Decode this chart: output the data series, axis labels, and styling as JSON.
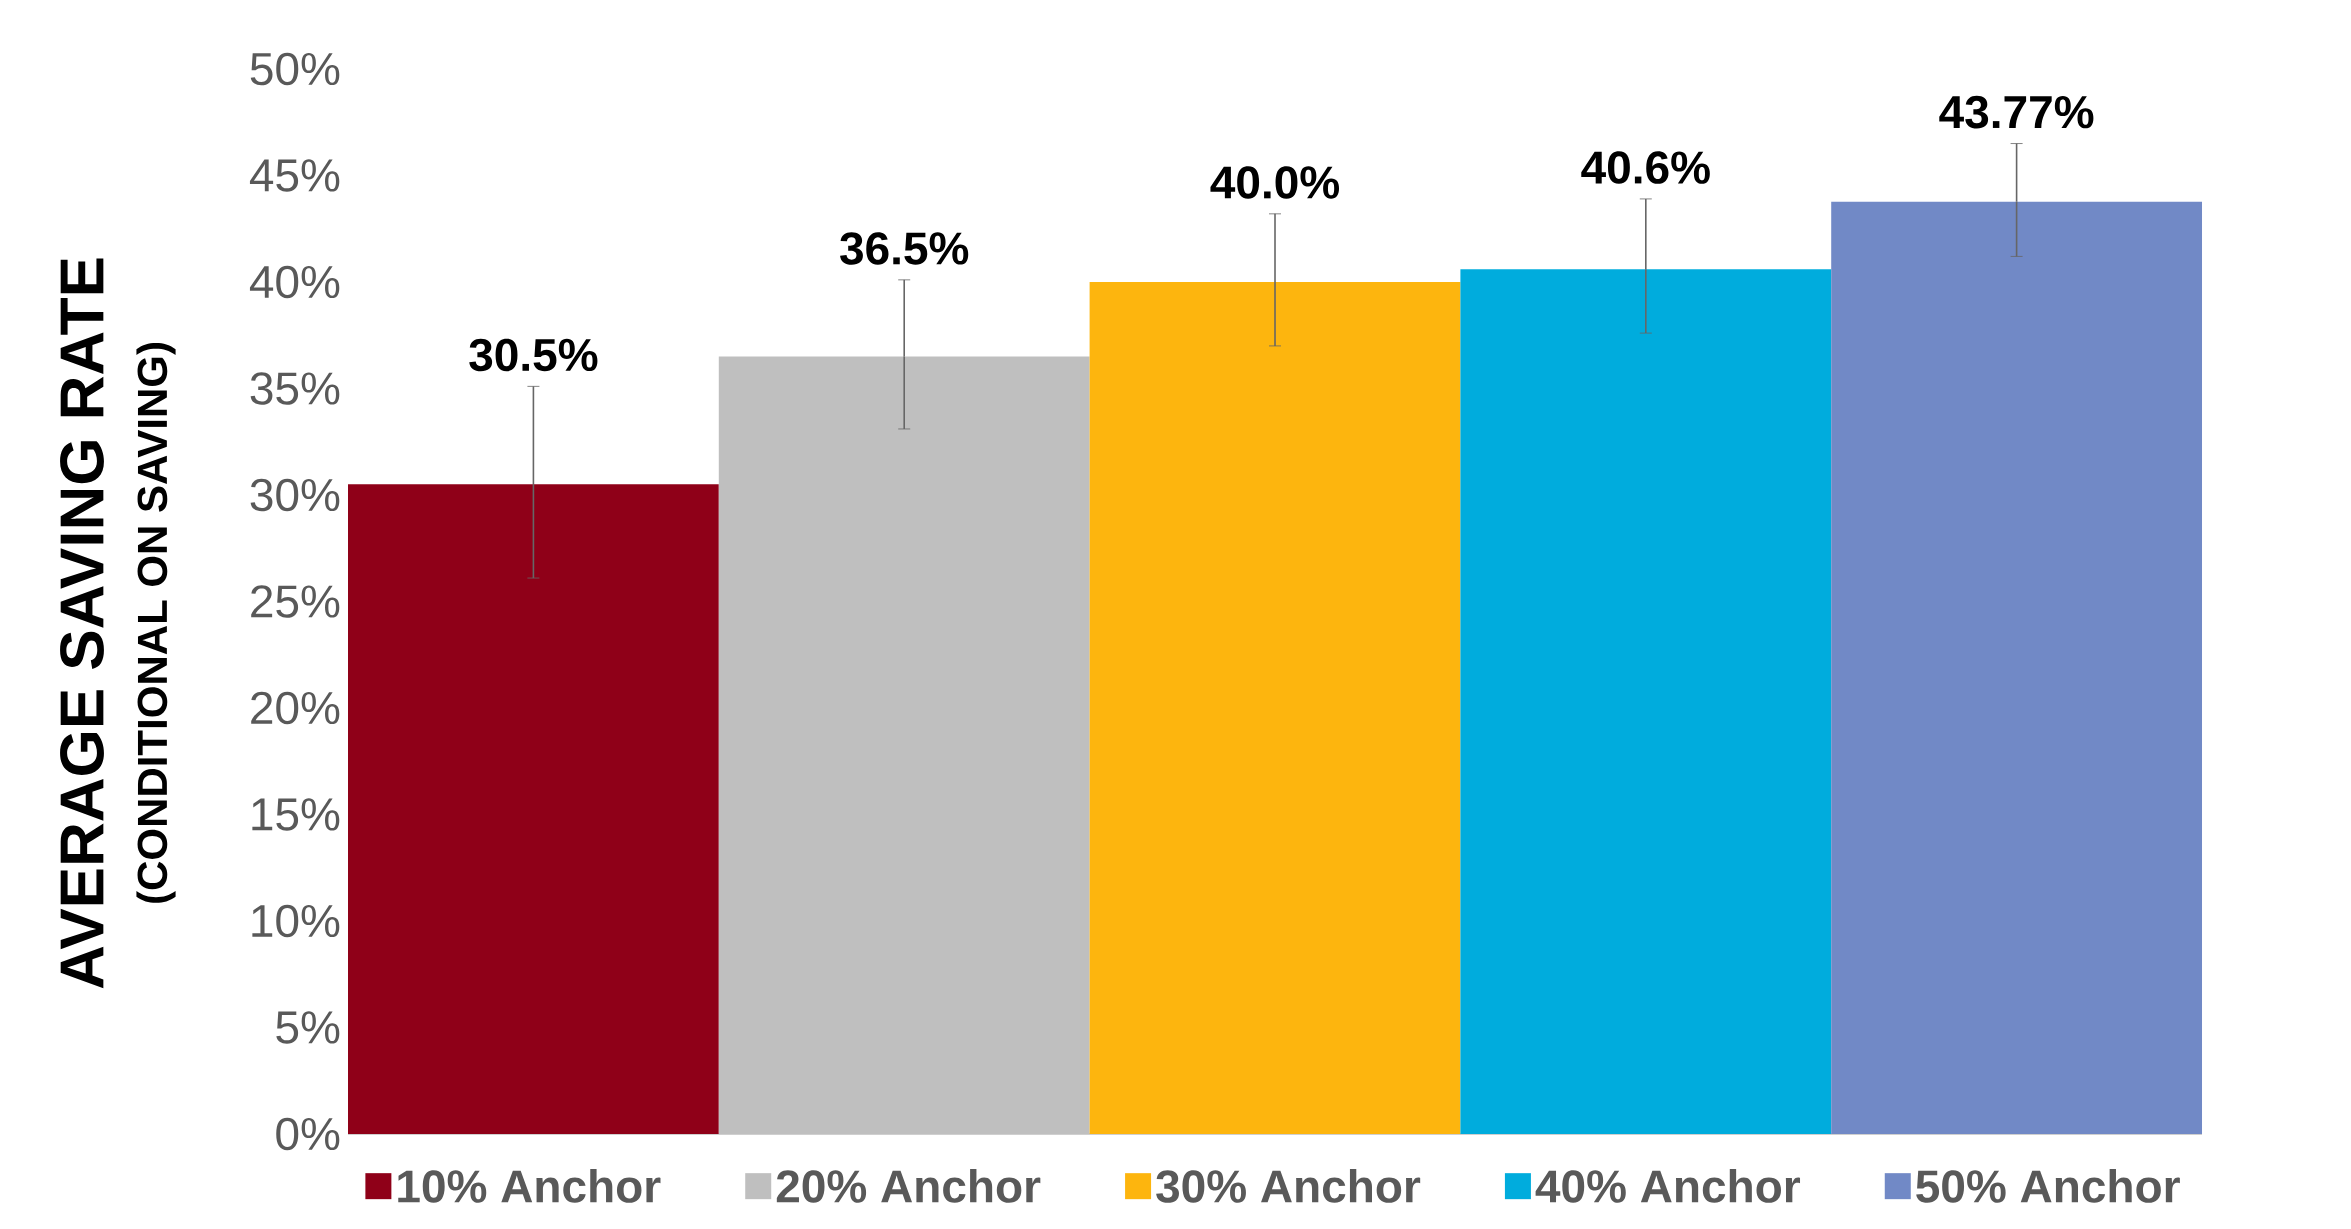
{
  "chart_data": {
    "type": "bar",
    "ylabel": "AVERAGE SAVING RATE",
    "annotations": [
      "(CONDITIONAL ON SAVING)"
    ],
    "categories": [
      null
    ],
    "series": [
      {
        "name": "10% Anchor",
        "color": "#8f0018",
        "values": [
          30.5
        ],
        "errors": [
          [
            26.1,
            35.1
          ]
        ],
        "value_labels": [
          "30.5%"
        ]
      },
      {
        "name": "20% Anchor",
        "color": "#bfbfbf",
        "values": [
          36.5
        ],
        "errors": [
          [
            33.1,
            40.1
          ]
        ],
        "value_labels": [
          "36.5%"
        ]
      },
      {
        "name": "30% Anchor",
        "color": "#fdb50e",
        "values": [
          40.0
        ],
        "errors": [
          [
            37.0,
            43.2
          ]
        ],
        "value_labels": [
          "40.0%"
        ]
      },
      {
        "name": "40% Anchor",
        "color": "#00acdd",
        "values": [
          40.6
        ],
        "errors": [
          [
            37.6,
            43.9
          ]
        ],
        "value_labels": [
          "40.6%"
        ]
      },
      {
        "name": "50% Anchor",
        "color": "#7189c6",
        "values": [
          43.77
        ],
        "errors": [
          [
            41.2,
            46.5
          ]
        ],
        "value_labels": [
          "43.77%"
        ]
      }
    ],
    "ylim": [
      0,
      50
    ],
    "yticks": [
      {
        "value": 0,
        "label": "0%"
      },
      {
        "value": 5,
        "label": "5%"
      },
      {
        "value": 10,
        "label": "10%"
      },
      {
        "value": 15,
        "label": "15%"
      },
      {
        "value": 20,
        "label": "20%"
      },
      {
        "value": 25,
        "label": "25%"
      },
      {
        "value": 30,
        "label": "30%"
      },
      {
        "value": 35,
        "label": "35%"
      },
      {
        "value": 40,
        "label": "40%"
      },
      {
        "value": 45,
        "label": "45%"
      },
      {
        "value": 50,
        "label": "50%"
      }
    ],
    "legend": "bottom",
    "grid": false
  }
}
